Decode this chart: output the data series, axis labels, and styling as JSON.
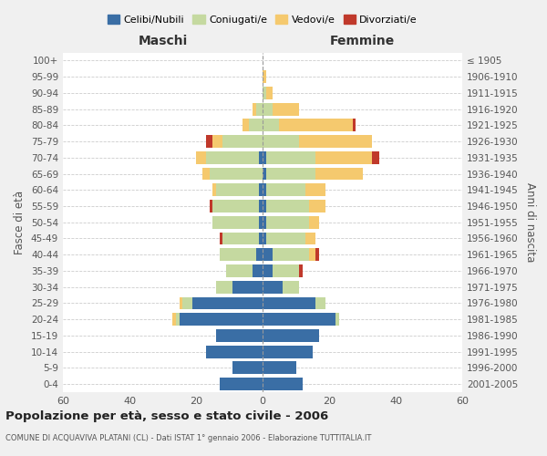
{
  "age_groups": [
    "0-4",
    "5-9",
    "10-14",
    "15-19",
    "20-24",
    "25-29",
    "30-34",
    "35-39",
    "40-44",
    "45-49",
    "50-54",
    "55-59",
    "60-64",
    "65-69",
    "70-74",
    "75-79",
    "80-84",
    "85-89",
    "90-94",
    "95-99",
    "100+"
  ],
  "birth_years": [
    "2001-2005",
    "1996-2000",
    "1991-1995",
    "1986-1990",
    "1981-1985",
    "1976-1980",
    "1971-1975",
    "1966-1970",
    "1961-1965",
    "1956-1960",
    "1951-1955",
    "1946-1950",
    "1941-1945",
    "1936-1940",
    "1931-1935",
    "1926-1930",
    "1921-1925",
    "1916-1920",
    "1911-1915",
    "1906-1910",
    "≤ 1905"
  ],
  "males": {
    "celibi": [
      13,
      9,
      17,
      14,
      25,
      21,
      9,
      3,
      2,
      1,
      1,
      1,
      1,
      0,
      1,
      0,
      0,
      0,
      0,
      0,
      0
    ],
    "coniugati": [
      0,
      0,
      0,
      0,
      1,
      3,
      5,
      8,
      11,
      11,
      14,
      14,
      13,
      16,
      16,
      12,
      4,
      2,
      0,
      0,
      0
    ],
    "vedovi": [
      0,
      0,
      0,
      0,
      1,
      1,
      0,
      0,
      0,
      0,
      0,
      0,
      1,
      2,
      3,
      3,
      2,
      1,
      0,
      0,
      0
    ],
    "divorziati": [
      0,
      0,
      0,
      0,
      0,
      0,
      0,
      0,
      0,
      1,
      0,
      1,
      0,
      0,
      0,
      2,
      0,
      0,
      0,
      0,
      0
    ]
  },
  "females": {
    "nubili": [
      12,
      10,
      15,
      17,
      22,
      16,
      6,
      3,
      3,
      1,
      1,
      1,
      1,
      1,
      1,
      0,
      0,
      0,
      0,
      0,
      0
    ],
    "coniugate": [
      0,
      0,
      0,
      0,
      1,
      3,
      5,
      8,
      11,
      12,
      13,
      13,
      12,
      15,
      15,
      11,
      5,
      3,
      1,
      0,
      0
    ],
    "vedove": [
      0,
      0,
      0,
      0,
      0,
      0,
      0,
      0,
      2,
      3,
      3,
      5,
      6,
      14,
      17,
      22,
      22,
      8,
      2,
      1,
      0
    ],
    "divorziate": [
      0,
      0,
      0,
      0,
      0,
      0,
      0,
      1,
      1,
      0,
      0,
      0,
      0,
      0,
      2,
      0,
      1,
      0,
      0,
      0,
      0
    ]
  },
  "colors": {
    "celibi_nubili": "#3a6ea5",
    "coniugati_e": "#c5d9a0",
    "vedovi_e": "#f5c96e",
    "divorziati_e": "#c0392b"
  },
  "title": "Popolazione per età, sesso e stato civile - 2006",
  "subtitle": "COMUNE DI ACQUAVIVA PLATANI (CL) - Dati ISTAT 1° gennaio 2006 - Elaborazione TUTTITALIA.IT",
  "xlabel_left": "Maschi",
  "xlabel_right": "Femmine",
  "ylabel_left": "Fasce di età",
  "ylabel_right": "Anni di nascita",
  "legend_labels": [
    "Celibi/Nubili",
    "Coniugati/e",
    "Vedovi/e",
    "Divorziati/e"
  ],
  "xlim": 60,
  "background_color": "#f0f0f0"
}
